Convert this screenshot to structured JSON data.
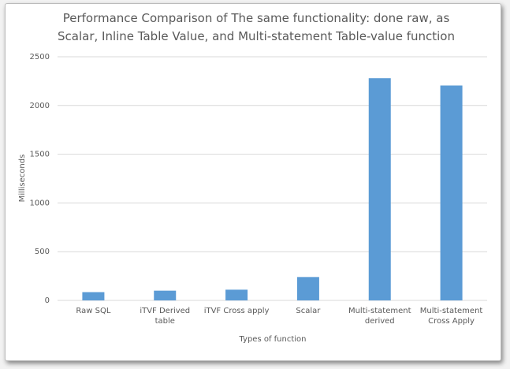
{
  "chart_data": {
    "type": "bar",
    "title": "Performance Comparison of The same functionality: done raw, as Scalar, Inline Table Value, and Multi-statement Table-value function",
    "x_label": "Types of function",
    "y_label": "Milliseconds",
    "categories": [
      "Raw SQL",
      "iTVF Derived table",
      "iTVF Cross apply",
      "Scalar",
      "Multi-statement derived",
      "Multi-statement Cross Apply"
    ],
    "values": [
      85,
      100,
      110,
      240,
      2280,
      2205
    ],
    "color": "#5b9bd5",
    "ylim": [
      0,
      2500
    ],
    "yticks": [
      0,
      500,
      1000,
      1500,
      2000,
      2500
    ],
    "grid": true
  }
}
